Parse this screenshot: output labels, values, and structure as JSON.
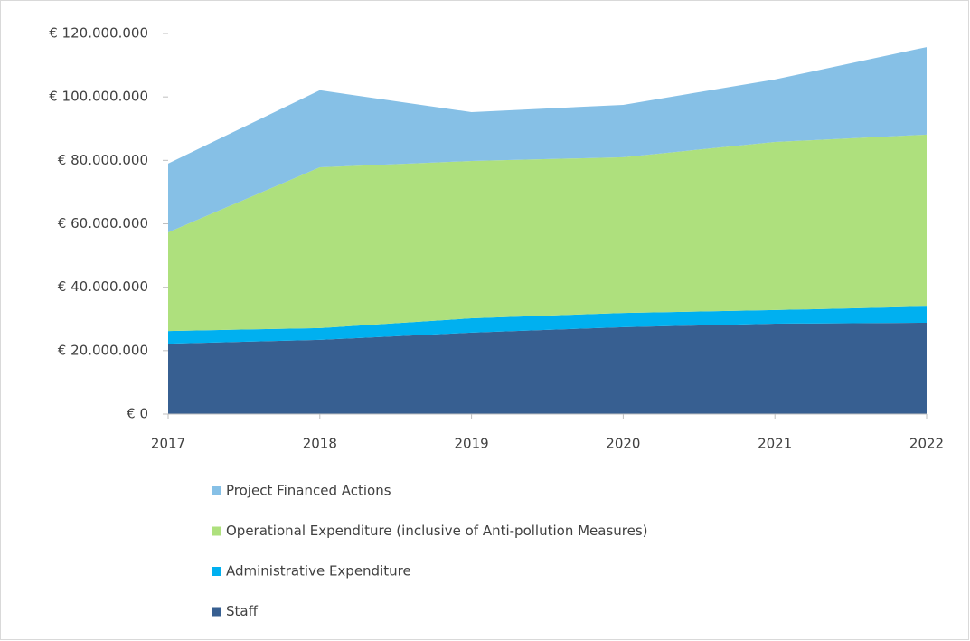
{
  "chart_data": {
    "type": "stacked_area",
    "categories": [
      "2017",
      "2018",
      "2019",
      "2020",
      "2021",
      "2022"
    ],
    "series": [
      {
        "name": "Staff",
        "color": "#375f91",
        "values": [
          22200000,
          23400000,
          25700000,
          27400000,
          28500000,
          28800000
        ]
      },
      {
        "name": "Administrative Expenditure",
        "color": "#00b0f0",
        "values": [
          4000000,
          3700000,
          4500000,
          4500000,
          4300000,
          5100000
        ]
      },
      {
        "name": "Operational Expenditure (inclusive of Anti-pollution Measures)",
        "color": "#aee07d",
        "values": [
          31100000,
          50700000,
          49600000,
          49100000,
          53000000,
          54200000
        ]
      },
      {
        "name": "Project Financed Actions",
        "color": "#86c0e6",
        "values": [
          21700000,
          24300000,
          15400000,
          16500000,
          19700000,
          27600000
        ]
      }
    ],
    "ylim": [
      0,
      120000000
    ],
    "yticks": [
      {
        "value": 0,
        "label": "€ 0"
      },
      {
        "value": 20000000,
        "label": "€ 20.000.000"
      },
      {
        "value": 40000000,
        "label": "€ 40.000.000"
      },
      {
        "value": 60000000,
        "label": "€ 60.000.000"
      },
      {
        "value": 80000000,
        "label": "€ 80.000.000"
      },
      {
        "value": 100000000,
        "label": "€ 100.000.000"
      },
      {
        "value": 120000000,
        "label": "€ 120.000.000"
      }
    ],
    "grid": false,
    "legend": "bottom"
  }
}
